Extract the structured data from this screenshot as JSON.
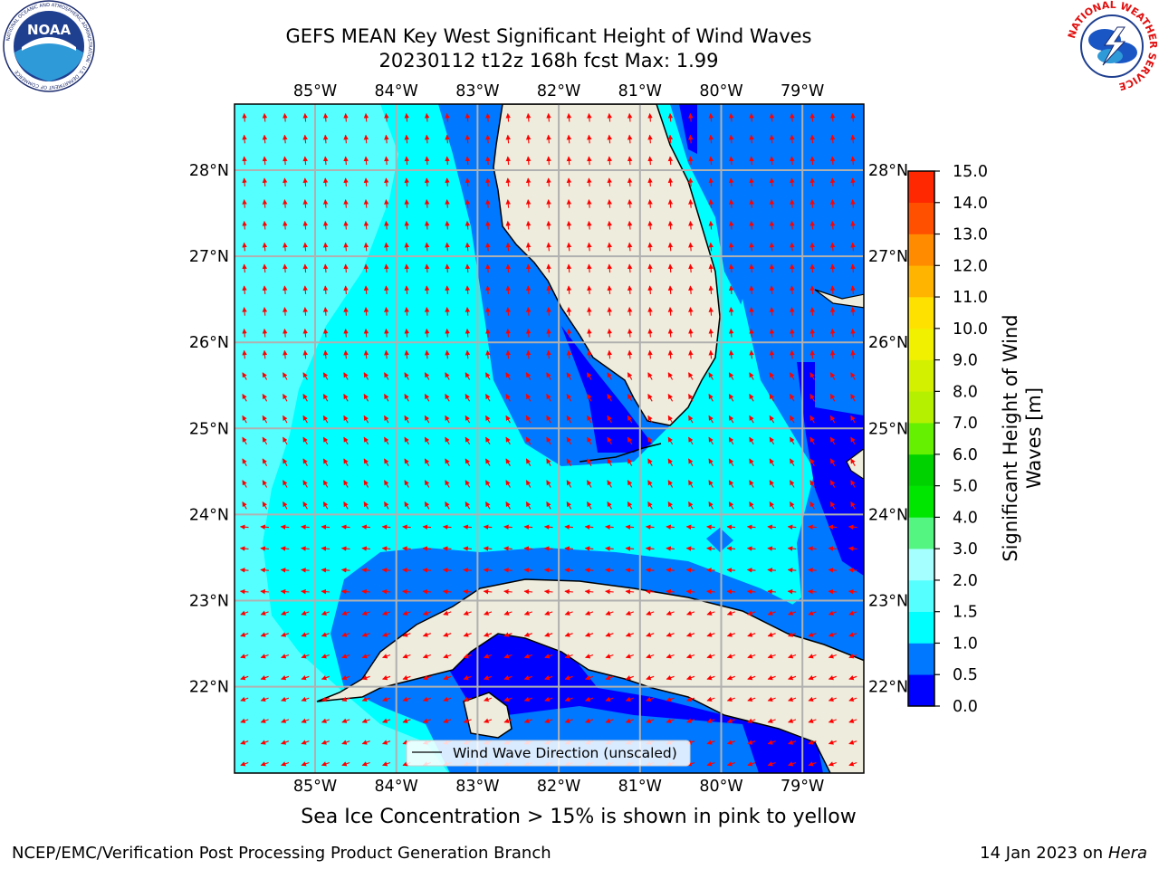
{
  "title": {
    "line1": "GEFS MEAN Key West Significant Height of Wind Waves",
    "line2": "20230112 t12z 168h fcst   Max: 1.99"
  },
  "map": {
    "longitude_ticks": [
      "85°W",
      "84°W",
      "83°W",
      "82°W",
      "81°W",
      "80°W",
      "79°W"
    ],
    "latitude_ticks": [
      "28°N",
      "27°N",
      "26°N",
      "25°N",
      "24°N",
      "23°N",
      "22°N"
    ],
    "legend_label": "Wind Wave Direction (unscaled)",
    "colors": {
      "land": "#eeecdc",
      "ocean_0_0_5": "#0000ff",
      "ocean_0_5_1_0": "#0078ff",
      "ocean_1_0_1_5": "#00ffff",
      "ocean_1_5_2_0": "#55ffff",
      "arrow": "#ff0000",
      "grid": "#b0b0b0"
    }
  },
  "colorbar": {
    "label_line1": "Significant Height of Wind",
    "label_line2": "Waves [m]",
    "ticks": [
      "0.0",
      "0.5",
      "1.0",
      "1.5",
      "2.0",
      "3.0",
      "4.0",
      "5.0",
      "6.0",
      "7.0",
      "8.0",
      "9.0",
      "10.0",
      "11.0",
      "12.0",
      "13.0",
      "14.0",
      "15.0"
    ],
    "bin_colors": [
      "#0000ff",
      "#0078ff",
      "#00ffff",
      "#55ffff",
      "#a5ffff",
      "#55f582",
      "#00e600",
      "#00d200",
      "#64f000",
      "#b4f000",
      "#d2f000",
      "#f0f000",
      "#ffe100",
      "#ffb400",
      "#ff8c00",
      "#ff5000",
      "#ff2800"
    ]
  },
  "logos": {
    "noaa_text": "NOAA",
    "noaa_ring": "NATIONAL OCEANIC AND ATMOSPHERIC ADMINISTRATION · U.S. DEPARTMENT OF COMMERCE",
    "nws_ring": "NATIONAL WEATHER SERVICE"
  },
  "caption": "Sea Ice Concentration > 15% is shown in pink to yellow",
  "footer": {
    "left": "NCEP/EMC/Verification Post Processing Product Generation Branch",
    "right_date": "14 Jan 2023 on",
    "right_host": "Hera"
  }
}
